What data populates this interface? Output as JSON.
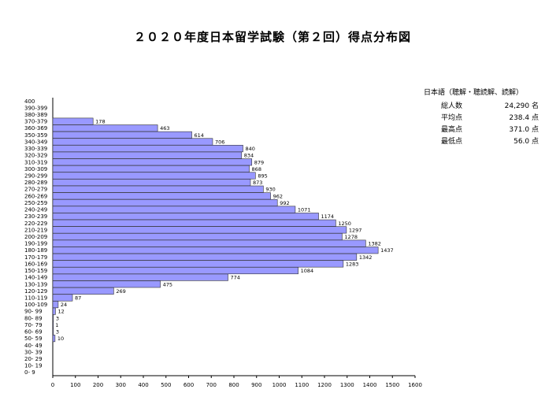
{
  "title": "２０２０年度日本留学試験（第２回）得点分布図",
  "stats": {
    "header": "日本語（聴解・聴読解、読解）",
    "rows": [
      {
        "label": "総人数",
        "value": "24,290 名"
      },
      {
        "label": "平均点",
        "value": "238.4 点"
      },
      {
        "label": "最高点",
        "value": "371.0 点"
      },
      {
        "label": "最低点",
        "value": "56.0 点"
      }
    ]
  },
  "chart_data": {
    "type": "bar",
    "orientation": "horizontal",
    "categories": [
      "400",
      "390-399",
      "380-389",
      "370-379",
      "360-369",
      "350-359",
      "340-349",
      "330-339",
      "320-329",
      "310-319",
      "300-309",
      "290-299",
      "280-289",
      "270-279",
      "260-269",
      "250-259",
      "240-249",
      "230-239",
      "220-229",
      "210-219",
      "200-209",
      "190-199",
      "180-189",
      "170-179",
      "160-169",
      "150-159",
      "140-149",
      "130-139",
      "120-129",
      "110-119",
      "100-109",
      "90- 99",
      "80- 89",
      "70- 79",
      "60- 69",
      "50- 59",
      "40- 49",
      "30- 39",
      "20- 29",
      "10- 19",
      "0- 9"
    ],
    "values": [
      0,
      0,
      0,
      178,
      463,
      614,
      706,
      840,
      834,
      879,
      868,
      895,
      873,
      930,
      962,
      992,
      1071,
      1174,
      1250,
      1297,
      1278,
      1382,
      1437,
      1342,
      1283,
      1084,
      774,
      475,
      269,
      87,
      24,
      12,
      3,
      1,
      3,
      10,
      0,
      0,
      0,
      0,
      0
    ],
    "data_labels": [
      "",
      "",
      "",
      "178",
      "463",
      "614",
      "706",
      "840",
      "834",
      "879",
      "868",
      "895",
      "873",
      "930",
      "962",
      "992",
      "1071",
      "1174",
      "1250",
      "1297",
      "1278",
      "1382",
      "1437",
      "1342",
      "1283",
      "1084",
      "774",
      "475",
      "269",
      "87",
      "24",
      "12",
      "3",
      "1",
      "3",
      "10",
      "",
      "",
      "",
      "",
      ""
    ],
    "xlim": [
      0,
      1600
    ],
    "x_ticks": [
      "0",
      "100",
      "200",
      "300",
      "400",
      "500",
      "600",
      "700",
      "800",
      "900",
      "1000",
      "1100",
      "1200",
      "1300",
      "1400",
      "1500",
      "1600"
    ],
    "bar_color": "#9999ff",
    "bar_edge_color": "#333333",
    "grid": false
  }
}
